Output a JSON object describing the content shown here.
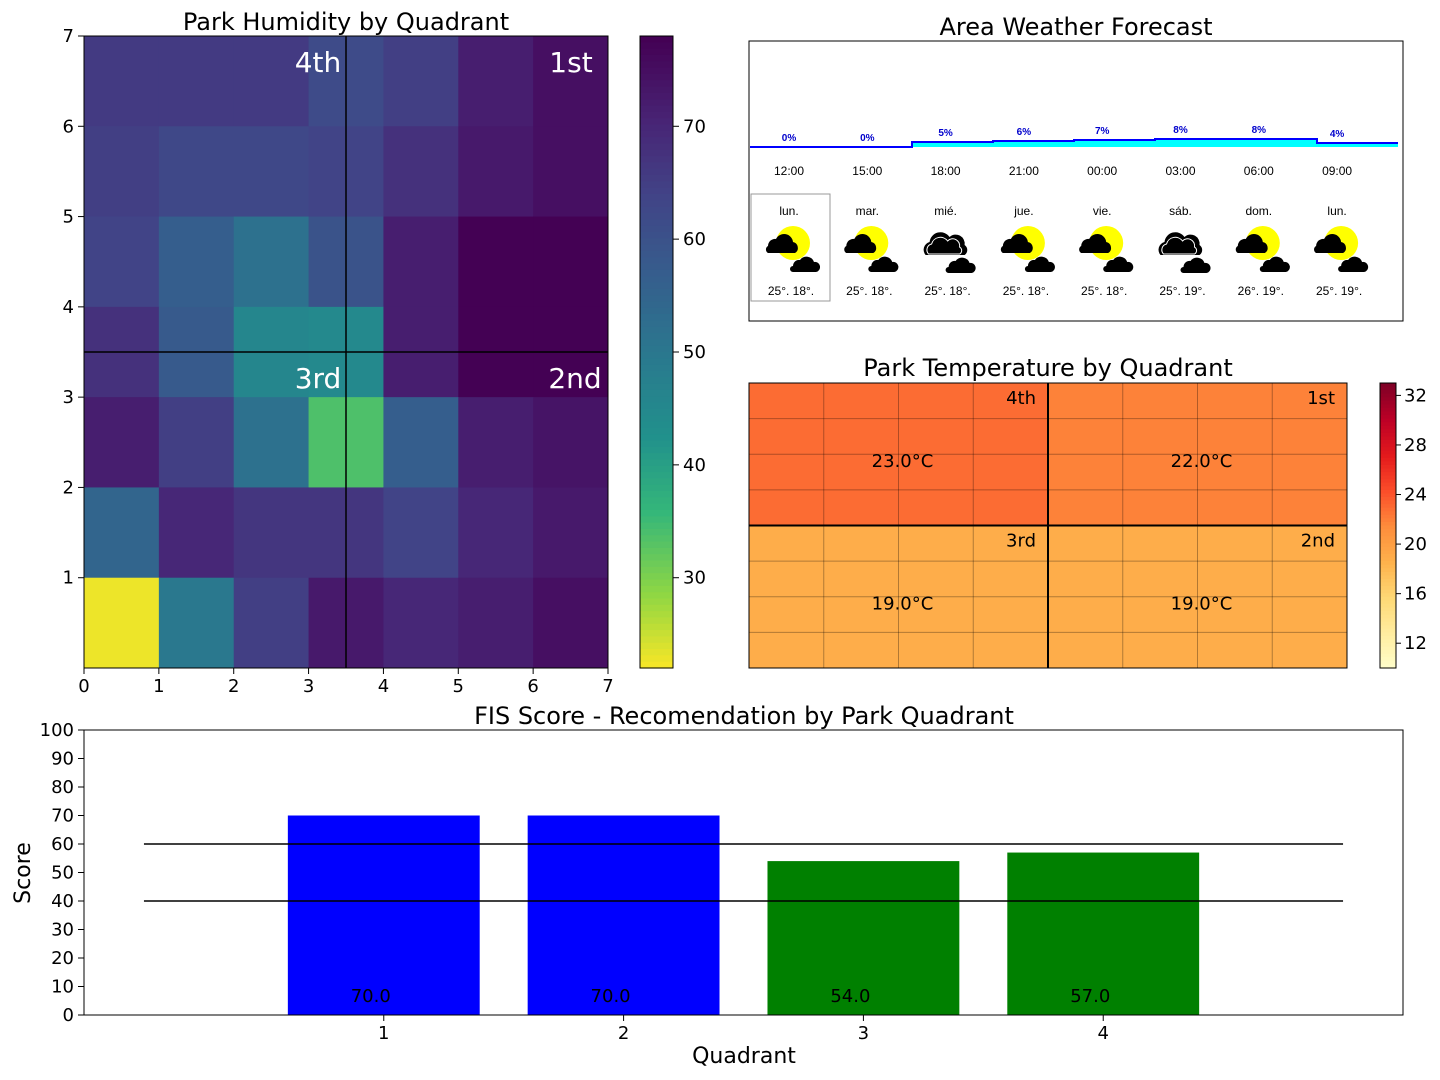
{
  "chart_data": [
    {
      "type": "heatmap",
      "title": "Park Humidity by Quadrant",
      "xlim": [
        0,
        7
      ],
      "ylim": [
        0,
        7
      ],
      "xticks": [
        "0",
        "1",
        "2",
        "3",
        "4",
        "5",
        "6",
        "7"
      ],
      "yticks": [
        "1",
        "2",
        "3",
        "4",
        "5",
        "6",
        "7"
      ],
      "colorbar_ticks": [
        "30",
        "40",
        "50",
        "60",
        "70"
      ],
      "colorbar_range": [
        22,
        78
      ],
      "colormap": "viridis_r",
      "values_rows_top_to_bottom": [
        [
          66,
          66,
          66,
          62,
          65,
          72,
          75
        ],
        [
          65,
          63,
          63,
          64,
          68,
          73,
          75
        ],
        [
          64,
          57,
          52,
          60,
          72,
          78,
          78
        ],
        [
          68,
          58,
          46,
          45,
          72,
          78,
          78
        ],
        [
          72,
          65,
          52,
          34,
          57,
          72,
          74
        ],
        [
          55,
          70,
          67,
          67,
          64,
          70,
          73
        ],
        [
          23,
          50,
          65,
          73,
          70,
          72,
          75
        ]
      ],
      "quadrant_labels": {
        "q4": "4th",
        "q1": "1st",
        "q3": "3rd",
        "q2": "2nd"
      }
    },
    {
      "type": "table",
      "title": "Area Weather Forecast",
      "hours": [
        "12:00",
        "15:00",
        "18:00",
        "21:00",
        "00:00",
        "03:00",
        "06:00",
        "09:00"
      ],
      "precip_pct": [
        "0%",
        "0%",
        "5%",
        "6%",
        "7%",
        "8%",
        "8%",
        "4%"
      ],
      "precip_values": [
        0,
        0,
        5,
        6,
        7,
        8,
        8,
        4
      ],
      "days": [
        "lun.",
        "mar.",
        "mié.",
        "jue.",
        "vie.",
        "sáb.",
        "dom.",
        "lun."
      ],
      "temps": [
        "25°. 18°.",
        "25°. 18°.",
        "25°. 18°.",
        "25°. 18°.",
        "25°. 18°.",
        "25°. 19°.",
        "26°. 19°.",
        "25°. 19°."
      ],
      "icons": [
        "sun-cloud-icon",
        "sun-cloud-icon",
        "cloud-icon",
        "sun-cloud-icon",
        "sun-cloud-icon",
        "cloud-icon",
        "sun-cloud-icon",
        "sun-cloud-icon"
      ]
    },
    {
      "type": "heatmap",
      "title": "Park Temperature by Quadrant",
      "colorbar_ticks": [
        "12",
        "16",
        "20",
        "24",
        "28",
        "32"
      ],
      "colorbar_range": [
        10,
        33
      ],
      "colormap": "YlOrRd",
      "quadrants": [
        {
          "label": "4th",
          "value": "23.0°C",
          "temp": 23
        },
        {
          "label": "1st",
          "value": "22.0°C",
          "temp": 22
        },
        {
          "label": "3rd",
          "value": "19.0°C",
          "temp": 19
        },
        {
          "label": "2nd",
          "value": "19.0°C",
          "temp": 19
        }
      ]
    },
    {
      "type": "bar",
      "title": "FIS Score - Recomendation by Park Quadrant",
      "xlabel": "Quadrant",
      "ylabel": "Score",
      "categories": [
        "1",
        "2",
        "3",
        "4"
      ],
      "values": [
        70.0,
        70.0,
        54.0,
        57.0
      ],
      "value_labels": [
        "70.0",
        "70.0",
        "54.0",
        "57.0"
      ],
      "colors": [
        "#0000ff",
        "#0000ff",
        "#008000",
        "#008000"
      ],
      "ylim": [
        0,
        100
      ],
      "yticks": [
        "0",
        "10",
        "20",
        "30",
        "40",
        "50",
        "60",
        "70",
        "80",
        "90",
        "100"
      ],
      "xlim": [
        -0.25,
        5.25
      ],
      "thresholds": [
        40,
        60
      ],
      "threshold_span": [
        0,
        5
      ]
    }
  ]
}
